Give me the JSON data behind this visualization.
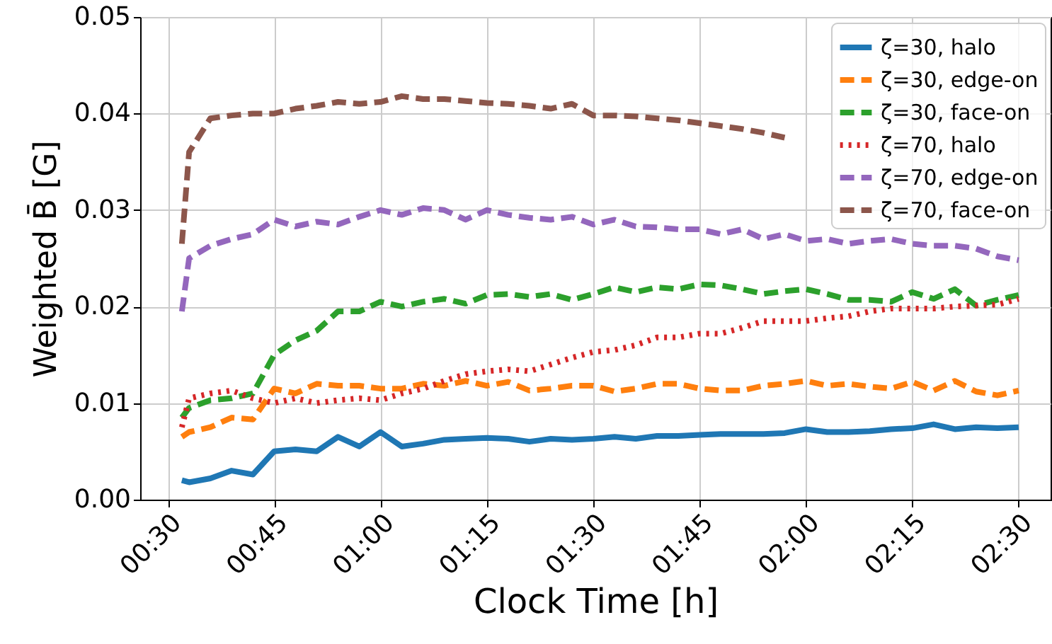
{
  "chart_data": {
    "type": "line",
    "xlabel": "Clock Time [h]",
    "ylabel": "Weighted B̄ [G]",
    "x": [
      0.533,
      0.55,
      0.6,
      0.65,
      0.7,
      0.75,
      0.8,
      0.85,
      0.9,
      0.95,
      1.0,
      1.05,
      1.1,
      1.15,
      1.2,
      1.25,
      1.3,
      1.35,
      1.4,
      1.45,
      1.5,
      1.55,
      1.6,
      1.65,
      1.7,
      1.75,
      1.8,
      1.85,
      1.9,
      1.95,
      2.0,
      2.05,
      2.1,
      2.15,
      2.2,
      2.25,
      2.3,
      2.35,
      2.4,
      2.45,
      2.5
    ],
    "series": [
      {
        "name": "ζ=30, halo",
        "color": "#1f77b4",
        "line_style": "solid",
        "values": [
          0.002,
          0.0018,
          0.0022,
          0.003,
          0.0026,
          0.005,
          0.0052,
          0.005,
          0.0065,
          0.0055,
          0.007,
          0.0055,
          0.0058,
          0.0062,
          0.0063,
          0.0064,
          0.0063,
          0.006,
          0.0063,
          0.0062,
          0.0063,
          0.0065,
          0.0063,
          0.0066,
          0.0066,
          0.0067,
          0.0068,
          0.0068,
          0.0068,
          0.0069,
          0.0073,
          0.007,
          0.007,
          0.0071,
          0.0073,
          0.0074,
          0.0078,
          0.0073,
          0.0075,
          0.0074,
          0.0075
        ]
      },
      {
        "name": "ζ=30, edge-on",
        "color": "#ff7f0e",
        "line_style": "dashed",
        "values": [
          0.0065,
          0.007,
          0.0075,
          0.0085,
          0.0083,
          0.0115,
          0.011,
          0.012,
          0.0118,
          0.0118,
          0.0115,
          0.0115,
          0.012,
          0.0118,
          0.0123,
          0.0118,
          0.0122,
          0.0113,
          0.0115,
          0.0118,
          0.0118,
          0.0112,
          0.0115,
          0.012,
          0.012,
          0.0115,
          0.0113,
          0.0113,
          0.0118,
          0.012,
          0.0123,
          0.0118,
          0.012,
          0.0117,
          0.0115,
          0.0122,
          0.0113,
          0.0123,
          0.0112,
          0.0108,
          0.0113
        ]
      },
      {
        "name": "ζ=30, face-on",
        "color": "#2ca02c",
        "line_style": "dashed",
        "values": [
          0.0085,
          0.0095,
          0.0103,
          0.0105,
          0.011,
          0.015,
          0.0165,
          0.0175,
          0.0195,
          0.0195,
          0.0205,
          0.02,
          0.0205,
          0.0208,
          0.0203,
          0.0212,
          0.0213,
          0.021,
          0.0213,
          0.0207,
          0.0213,
          0.022,
          0.0215,
          0.022,
          0.0218,
          0.0223,
          0.0222,
          0.0218,
          0.0213,
          0.0216,
          0.0218,
          0.0213,
          0.0207,
          0.0207,
          0.0205,
          0.0215,
          0.0208,
          0.0218,
          0.0201,
          0.0207,
          0.0212
        ]
      },
      {
        "name": "ζ=70, halo",
        "color": "#d62728",
        "line_style": "dotted",
        "values": [
          0.0075,
          0.0105,
          0.011,
          0.0113,
          0.0105,
          0.01,
          0.0105,
          0.01,
          0.0103,
          0.0105,
          0.0103,
          0.011,
          0.0115,
          0.0123,
          0.013,
          0.0133,
          0.0135,
          0.0133,
          0.014,
          0.0147,
          0.0153,
          0.0155,
          0.016,
          0.0168,
          0.0168,
          0.0172,
          0.0172,
          0.0178,
          0.0185,
          0.0185,
          0.0185,
          0.0188,
          0.019,
          0.0195,
          0.0198,
          0.0198,
          0.0198,
          0.02,
          0.0201,
          0.0202,
          0.0208
        ]
      },
      {
        "name": "ζ=70, edge-on",
        "color": "#9467bd",
        "line_style": "dashed",
        "values": [
          0.0195,
          0.025,
          0.0263,
          0.027,
          0.0275,
          0.029,
          0.0283,
          0.0288,
          0.0285,
          0.0293,
          0.03,
          0.0295,
          0.0302,
          0.03,
          0.029,
          0.03,
          0.0295,
          0.0292,
          0.029,
          0.0293,
          0.0285,
          0.029,
          0.0283,
          0.0282,
          0.028,
          0.028,
          0.0275,
          0.028,
          0.027,
          0.0275,
          0.0268,
          0.027,
          0.0265,
          0.0268,
          0.027,
          0.0265,
          0.0263,
          0.0263,
          0.026,
          0.0252,
          0.0248
        ]
      },
      {
        "name": "ζ=70, face-on",
        "color": "#8c564b",
        "line_style": "dashed",
        "values": [
          0.0265,
          0.036,
          0.0395,
          0.0398,
          0.04,
          0.04,
          0.0405,
          0.0408,
          0.0412,
          0.041,
          0.0412,
          0.0418,
          0.0415,
          0.0415,
          0.0413,
          0.0411,
          0.041,
          0.0408,
          0.0405,
          0.041,
          0.0398,
          0.0398,
          0.0397,
          0.0395,
          0.0393,
          0.039,
          0.0387,
          0.0384,
          0.038,
          0.0375,
          null,
          null,
          null,
          null,
          null,
          null,
          null,
          null,
          null,
          null,
          null
        ]
      }
    ],
    "xlim": [
      0.435,
      2.575
    ],
    "xticks": [
      {
        "value": 0.5,
        "label": "00:30"
      },
      {
        "value": 0.75,
        "label": "00:45"
      },
      {
        "value": 1.0,
        "label": "01:00"
      },
      {
        "value": 1.25,
        "label": "01:15"
      },
      {
        "value": 1.5,
        "label": "01:30"
      },
      {
        "value": 1.75,
        "label": "01:45"
      },
      {
        "value": 2.0,
        "label": "02:00"
      },
      {
        "value": 2.25,
        "label": "02:15"
      },
      {
        "value": 2.5,
        "label": "02:30"
      }
    ],
    "ylim": [
      0,
      0.05
    ],
    "yticks": [
      {
        "value": 0,
        "label": "0.00"
      },
      {
        "value": 0.01,
        "label": "0.01"
      },
      {
        "value": 0.02,
        "label": "0.02"
      },
      {
        "value": 0.03,
        "label": "0.03"
      },
      {
        "value": 0.04,
        "label": "0.04"
      },
      {
        "value": 0.05,
        "label": "0.05"
      }
    ],
    "grid": true,
    "legend": "top right",
    "marker": "none"
  }
}
